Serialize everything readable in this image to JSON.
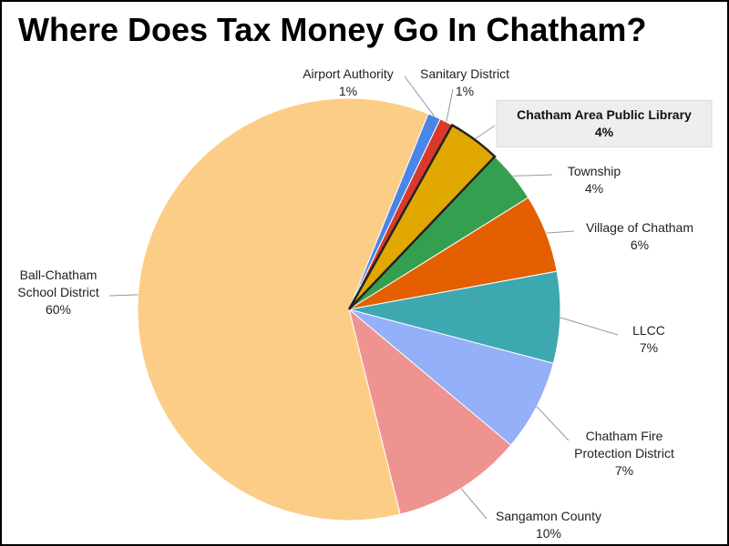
{
  "chart_data": {
    "type": "pie",
    "title": "Where Does Tax Money Go In Chatham?",
    "categories": [
      "Airport Authority",
      "Sanitary District",
      "Chatham Area Public Library",
      "Township",
      "Village of Chatham",
      "LLCC",
      "Chatham Fire Protection District",
      "Sangamon County",
      "Ball-Chatham School District"
    ],
    "values": [
      1,
      1,
      4,
      4,
      6,
      7,
      7,
      10,
      60
    ],
    "value_labels": [
      "1%",
      "1%",
      "4%",
      "4%",
      "6%",
      "7%",
      "7%",
      "10%",
      "60%"
    ],
    "colors": [
      "#4a86e8",
      "#d9392b",
      "#e0a800",
      "#34a04f",
      "#e35f00",
      "#3ea8b0",
      "#93b0f8",
      "#ef9390",
      "#fccd86"
    ],
    "highlighted": 2
  }
}
